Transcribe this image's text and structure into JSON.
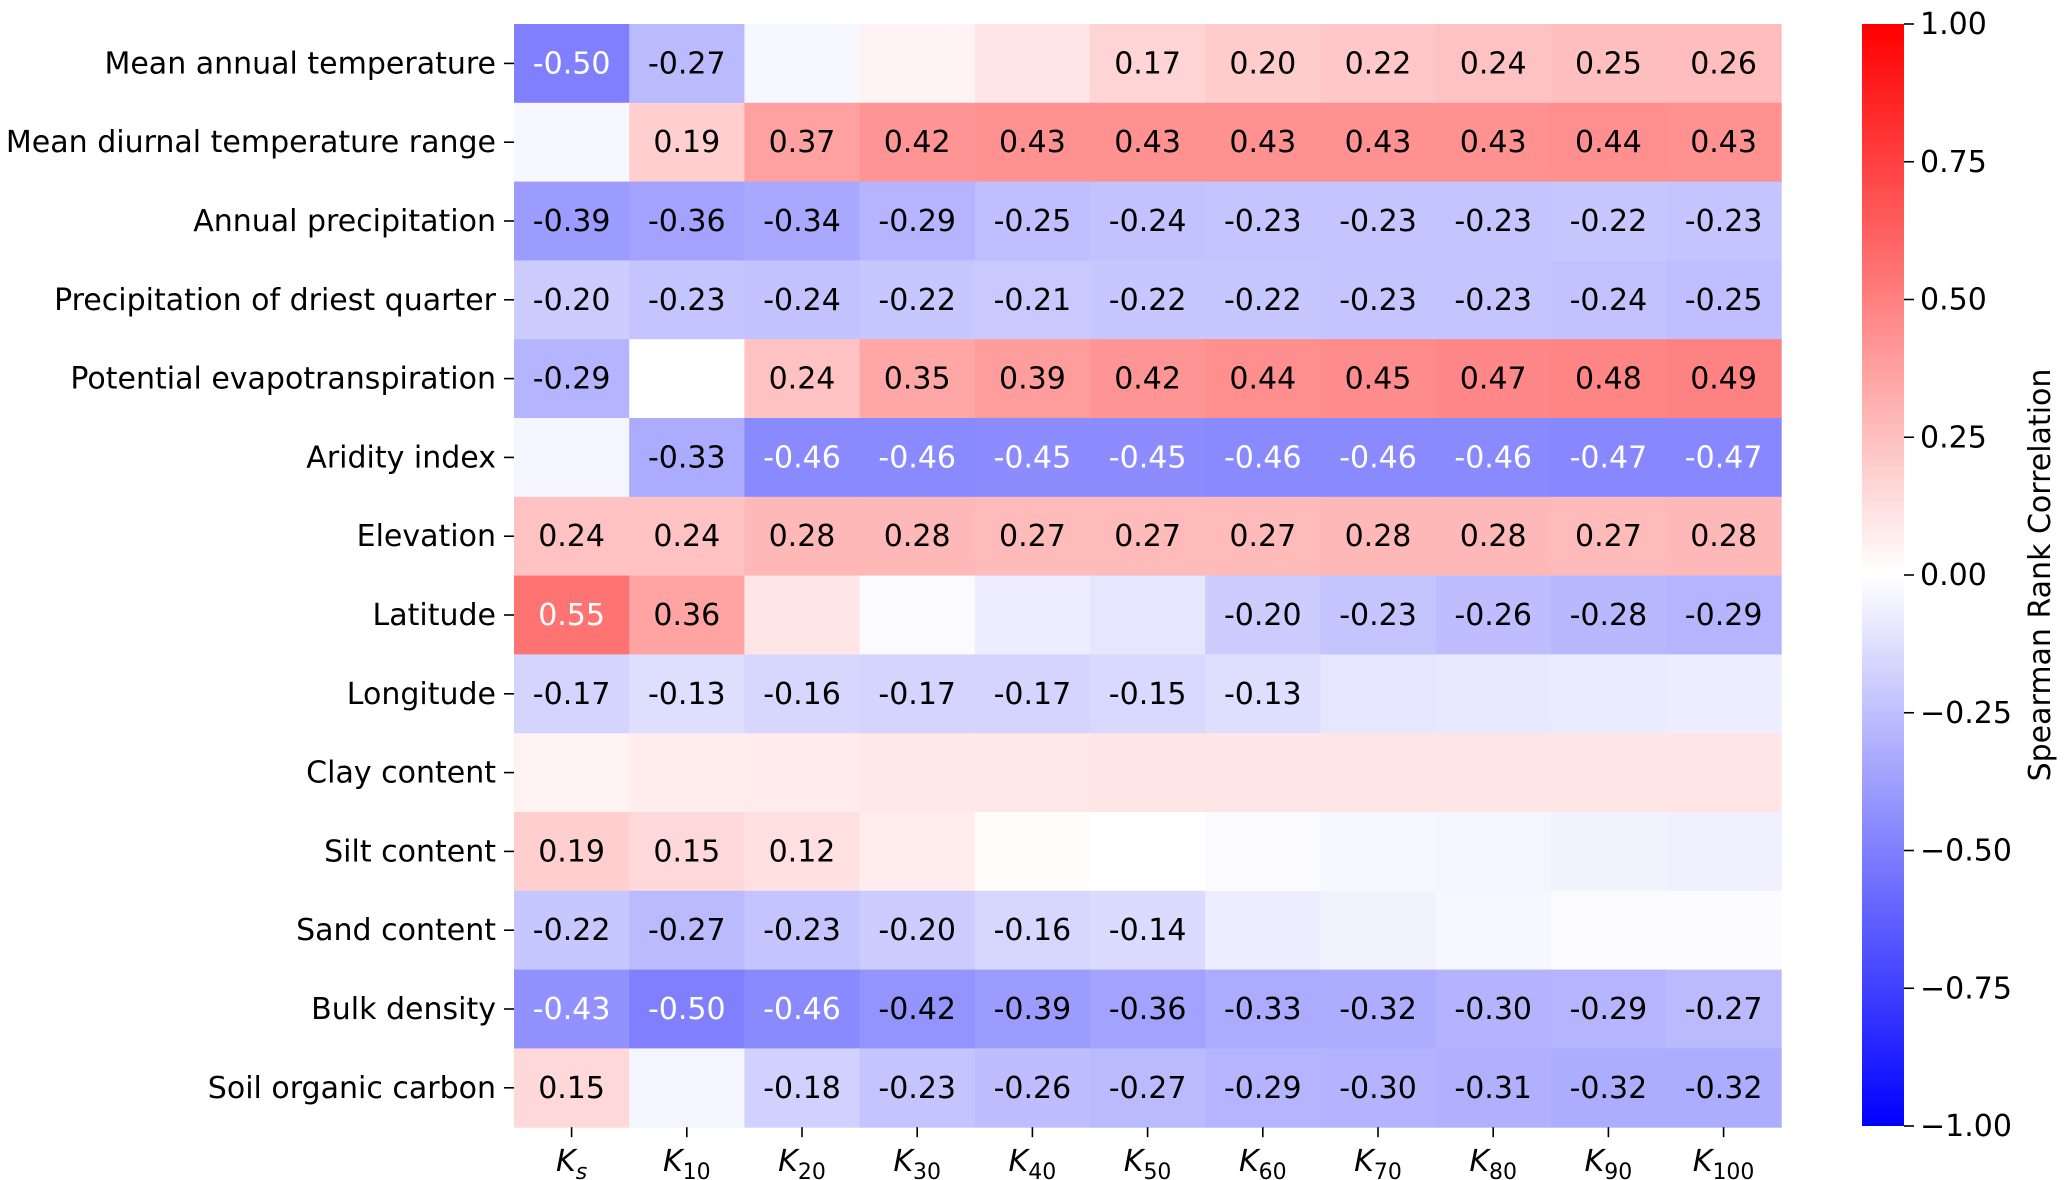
{
  "chart_data": {
    "type": "heatmap",
    "title": "",
    "xlabel": "",
    "ylabel": "",
    "rows": [
      "Mean annual temperature",
      "Mean diurnal temperature range",
      "Annual precipitation",
      "Precipitation of driest quarter",
      "Potential evapotranspiration",
      "Aridity index",
      "Elevation",
      "Latitude",
      "Longitude",
      "Clay content",
      "Silt content",
      "Sand content",
      "Bulk density",
      "Soil organic carbon"
    ],
    "columns": [
      {
        "base": "K",
        "sub": "s"
      },
      {
        "base": "K",
        "sub": "10"
      },
      {
        "base": "K",
        "sub": "20"
      },
      {
        "base": "K",
        "sub": "30"
      },
      {
        "base": "K",
        "sub": "40"
      },
      {
        "base": "K",
        "sub": "50"
      },
      {
        "base": "K",
        "sub": "60"
      },
      {
        "base": "K",
        "sub": "70"
      },
      {
        "base": "K",
        "sub": "80"
      },
      {
        "base": "K",
        "sub": "90"
      },
      {
        "base": "K",
        "sub": "100"
      }
    ],
    "values": [
      [
        -0.5,
        -0.27,
        -0.03,
        0.05,
        0.1,
        0.17,
        0.2,
        0.22,
        0.24,
        0.25,
        0.26
      ],
      [
        -0.03,
        0.19,
        0.37,
        0.42,
        0.43,
        0.43,
        0.43,
        0.43,
        0.43,
        0.44,
        0.43
      ],
      [
        -0.39,
        -0.36,
        -0.34,
        -0.29,
        -0.25,
        -0.24,
        -0.23,
        -0.23,
        -0.23,
        -0.22,
        -0.23
      ],
      [
        -0.2,
        -0.23,
        -0.24,
        -0.22,
        -0.21,
        -0.22,
        -0.22,
        -0.23,
        -0.23,
        -0.24,
        -0.25
      ],
      [
        -0.29,
        0.0,
        0.24,
        0.35,
        0.39,
        0.42,
        0.44,
        0.45,
        0.47,
        0.48,
        0.49
      ],
      [
        -0.04,
        -0.33,
        -0.46,
        -0.46,
        -0.45,
        -0.45,
        -0.46,
        -0.46,
        -0.46,
        -0.47,
        -0.47
      ],
      [
        0.24,
        0.24,
        0.28,
        0.28,
        0.27,
        0.27,
        0.27,
        0.28,
        0.28,
        0.27,
        0.28
      ],
      [
        0.55,
        0.36,
        0.1,
        -0.02,
        -0.07,
        -0.1,
        -0.2,
        -0.23,
        -0.26,
        -0.28,
        -0.29
      ],
      [
        -0.17,
        -0.13,
        -0.16,
        -0.17,
        -0.17,
        -0.15,
        -0.13,
        -0.1,
        -0.09,
        -0.08,
        -0.07
      ],
      [
        0.05,
        0.07,
        0.08,
        0.09,
        0.09,
        0.1,
        0.1,
        0.1,
        0.1,
        0.1,
        0.1
      ],
      [
        0.19,
        0.15,
        0.12,
        0.07,
        0.01,
        0.0,
        -0.02,
        -0.03,
        -0.04,
        -0.05,
        -0.06
      ],
      [
        -0.22,
        -0.27,
        -0.23,
        -0.2,
        -0.16,
        -0.14,
        -0.07,
        -0.05,
        -0.03,
        -0.02,
        -0.01
      ],
      [
        -0.43,
        -0.5,
        -0.46,
        -0.42,
        -0.39,
        -0.36,
        -0.33,
        -0.32,
        -0.3,
        -0.29,
        -0.27
      ],
      [
        0.15,
        -0.04,
        -0.18,
        -0.23,
        -0.26,
        -0.27,
        -0.29,
        -0.3,
        -0.31,
        -0.32,
        -0.32
      ]
    ],
    "annotations": [
      [
        "-0.50",
        "-0.27",
        "",
        "",
        "",
        "0.17",
        "0.20",
        "0.22",
        "0.24",
        "0.25",
        "0.26"
      ],
      [
        "",
        "0.19",
        "0.37",
        "0.42",
        "0.43",
        "0.43",
        "0.43",
        "0.43",
        "0.43",
        "0.44",
        "0.43"
      ],
      [
        "-0.39",
        "-0.36",
        "-0.34",
        "-0.29",
        "-0.25",
        "-0.24",
        "-0.23",
        "-0.23",
        "-0.23",
        "-0.22",
        "-0.23"
      ],
      [
        "-0.20",
        "-0.23",
        "-0.24",
        "-0.22",
        "-0.21",
        "-0.22",
        "-0.22",
        "-0.23",
        "-0.23",
        "-0.24",
        "-0.25"
      ],
      [
        "-0.29",
        "",
        "0.24",
        "0.35",
        "0.39",
        "0.42",
        "0.44",
        "0.45",
        "0.47",
        "0.48",
        "0.49"
      ],
      [
        "",
        "-0.33",
        "-0.46",
        "-0.46",
        "-0.45",
        "-0.45",
        "-0.46",
        "-0.46",
        "-0.46",
        "-0.47",
        "-0.47"
      ],
      [
        "0.24",
        "0.24",
        "0.28",
        "0.28",
        "0.27",
        "0.27",
        "0.27",
        "0.28",
        "0.28",
        "0.27",
        "0.28"
      ],
      [
        "0.55",
        "0.36",
        "",
        "",
        "",
        "",
        "-0.20",
        "-0.23",
        "-0.26",
        "-0.28",
        "-0.29"
      ],
      [
        "-0.17",
        "-0.13",
        "-0.16",
        "-0.17",
        "-0.17",
        "-0.15",
        "-0.13",
        "",
        "",
        "",
        ""
      ],
      [
        "",
        "",
        "",
        "",
        "",
        "",
        "",
        "",
        "",
        "",
        ""
      ],
      [
        "0.19",
        "0.15",
        "0.12",
        "",
        "",
        "",
        "",
        "",
        "",
        "",
        ""
      ],
      [
        "-0.22",
        "-0.27",
        "-0.23",
        "-0.20",
        "-0.16",
        "-0.14",
        "",
        "",
        "",
        "",
        ""
      ],
      [
        "-0.43",
        "-0.50",
        "-0.46",
        "-0.42",
        "-0.39",
        "-0.36",
        "-0.33",
        "-0.32",
        "-0.30",
        "-0.29",
        "-0.27"
      ],
      [
        "0.15",
        "",
        "-0.18",
        "-0.23",
        "-0.26",
        "-0.27",
        "-0.29",
        "-0.30",
        "-0.31",
        "-0.32",
        "-0.32"
      ]
    ],
    "colormap": {
      "name": "bwr",
      "low": "#0000ff",
      "mid": "#ffffff",
      "high": "#ff0000"
    },
    "vmin": -1.0,
    "vmax": 1.0,
    "colorbar": {
      "label": "Spearman Rank Correlation",
      "ticks": [
        1.0,
        0.75,
        0.5,
        0.25,
        0.0,
        -0.25,
        -0.5,
        -0.75,
        -1.0
      ],
      "tick_labels": [
        "1.00",
        "0.75",
        "0.50",
        "0.25",
        "0.00",
        "−0.25",
        "−0.50",
        "−0.75",
        "−1.00"
      ]
    }
  }
}
